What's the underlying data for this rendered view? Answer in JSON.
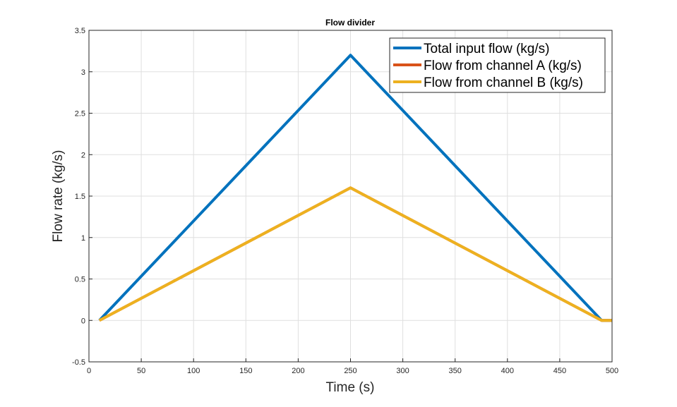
{
  "chart_data": {
    "type": "line",
    "title": "Flow divider",
    "xlabel": "Time (s)",
    "ylabel": "Flow rate (kg/s)",
    "xlim": [
      0,
      500
    ],
    "ylim": [
      -0.5,
      3.5
    ],
    "xticks": [
      0,
      50,
      100,
      150,
      200,
      250,
      300,
      350,
      400,
      450,
      500
    ],
    "yticks": [
      -0.5,
      0,
      0.5,
      1,
      1.5,
      2,
      2.5,
      3,
      3.5
    ],
    "grid": true,
    "legend_position": "top-right",
    "series": [
      {
        "name": "Total input flow (kg/s)",
        "color": "#0072BD",
        "x": [
          10,
          250,
          490,
          500
        ],
        "y": [
          0,
          3.2,
          0,
          0
        ]
      },
      {
        "name": "Flow from channel A (kg/s)",
        "color": "#D95319",
        "x": [
          10,
          250,
          490,
          500
        ],
        "y": [
          0,
          1.6,
          0,
          0
        ]
      },
      {
        "name": "Flow from channel B (kg/s)",
        "color": "#EDB120",
        "x": [
          10,
          250,
          490,
          500
        ],
        "y": [
          0,
          1.6,
          0,
          0
        ]
      }
    ]
  }
}
